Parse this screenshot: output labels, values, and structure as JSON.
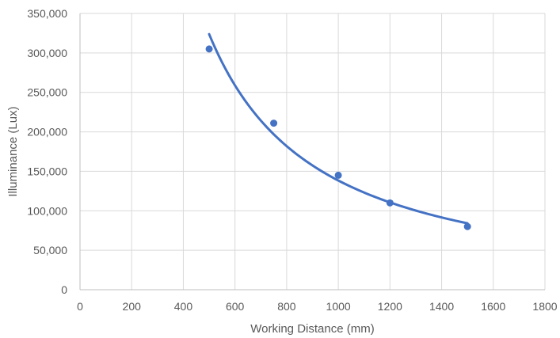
{
  "chart_data": {
    "type": "scatter",
    "title": "",
    "xlabel": "Working Distance (mm)",
    "ylabel": "Illuminance (Lux)",
    "xlim": [
      0,
      1800
    ],
    "ylim": [
      0,
      350000
    ],
    "x_ticks": [
      "0",
      "200",
      "400",
      "600",
      "800",
      "1000",
      "1200",
      "1400",
      "1600",
      "1800"
    ],
    "y_ticks": [
      "0",
      "50,000",
      "100,000",
      "150,000",
      "200,000",
      "250,000",
      "300,000",
      "350,000"
    ],
    "grid": true,
    "series": [
      {
        "x": [
          500,
          750,
          1000,
          1200,
          1500
        ],
        "y": [
          305000,
          211000,
          145000,
          110000,
          80000
        ],
        "color": "#4472c4"
      }
    ],
    "trendline": {
      "type": "power",
      "x_range": [
        500,
        1500
      ],
      "color": "#4472c4"
    }
  }
}
